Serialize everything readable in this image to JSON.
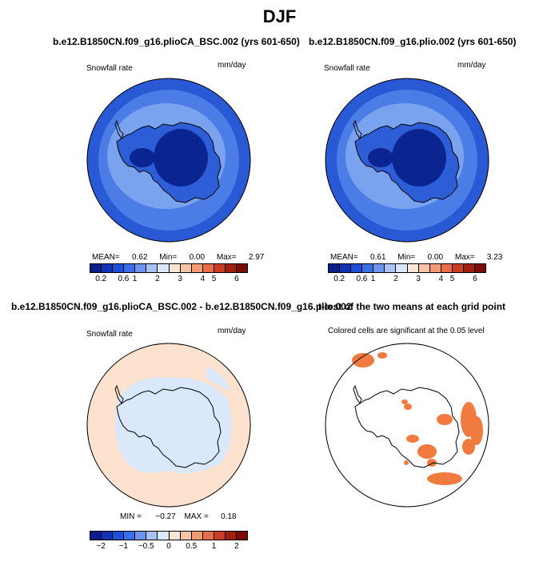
{
  "figure": {
    "title": "DJF"
  },
  "panels": [
    {
      "title": "b.e12.B1850CN.f09_g16.plioCA_BSC.002 (yrs 601-650)",
      "variable": "Snowfall rate",
      "units": "mm/day",
      "stats": {
        "mean_label": "MEAN=",
        "mean": "0.62",
        "min_label": "Min=",
        "min": "0.00",
        "max_label": "Max=",
        "max": "2.97"
      }
    },
    {
      "title": "b.e12.B1850CN.f09_g16.plio.002 (yrs 601-650)",
      "variable": "Snowfall rate",
      "units": "mm/day",
      "stats": {
        "mean_label": "MEAN=",
        "mean": "0.61",
        "min_label": "Min=",
        "min": "0.00",
        "max_label": "Max=",
        "max": "3.23"
      }
    },
    {
      "title": "b.e12.B1850CN.f09_g16.plioCA_BSC.002 - b.e12.B1850CN.f09_g16.plio.002",
      "variable": "Snowfall rate",
      "units": "mm/day",
      "stats": {
        "min_label": "MIN =",
        "min": "−0.27",
        "max_label": "MAX =",
        "max": "0.18"
      }
    },
    {
      "title": "t-test of the two means at each grid point",
      "subtitle": "Colored cells are significant at the 0.05 level"
    }
  ],
  "colorbars": {
    "abs": {
      "colors": [
        "#0a1e8c",
        "#1233b5",
        "#1f4fd6",
        "#3a6ee8",
        "#6d95ee",
        "#a7c2f4",
        "#d9e6fb",
        "#fde5d6",
        "#f9c3a6",
        "#f29a72",
        "#e86c47",
        "#cc3d23",
        "#a0200f",
        "#7a0d05"
      ],
      "ticks": [
        "0.2",
        "0.6",
        "1",
        "2",
        "3",
        "4",
        "5",
        "6"
      ]
    },
    "diff": {
      "colors": [
        "#0a1e8c",
        "#1233b5",
        "#1f4fd6",
        "#3a6ee8",
        "#6d95ee",
        "#a7c2f4",
        "#d9e6fb",
        "#fde5d6",
        "#f9c3a6",
        "#f29a72",
        "#e86c47",
        "#cc3d23",
        "#a0200f",
        "#7a0d05"
      ],
      "ticks": [
        "−2",
        "−1",
        "−0.5",
        "0",
        "0.5",
        "1",
        "2"
      ]
    }
  },
  "colors": {
    "ocean_outer": "#2a59d6",
    "ocean_mid": "#4c7ce6",
    "ocean_inner": "#7aa3ef",
    "interior": "#0a2590",
    "coast_band": "#2d5ed8",
    "diff_pos": "#fde2cf",
    "diff_neg": "#d9e8fb",
    "significant": "#f07a40"
  }
}
